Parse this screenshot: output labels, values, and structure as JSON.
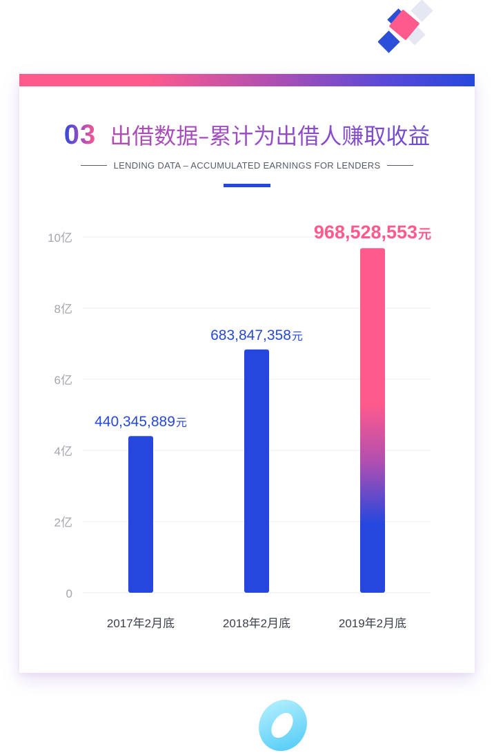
{
  "header": {
    "number": "03",
    "title": "出借数据–累计为出借人赚取收益",
    "subtitle": "LENDING DATA – ACCUMULATED EARNINGS FOR LENDERS"
  },
  "colors": {
    "bar": "#2647dd",
    "highlight": "#ff5a8c",
    "axis_text": "#a3a6ad",
    "category_text": "#3a3f4a",
    "grid": "#eeeeee"
  },
  "chart_data": {
    "type": "bar",
    "categories": [
      "2017年2月底",
      "2018年2月底",
      "2019年2月底"
    ],
    "values": [
      440345889,
      683847358,
      968528553
    ],
    "data_labels": [
      {
        "number": "440,345,889",
        "unit": "元"
      },
      {
        "number": "683,847,358",
        "unit": "元"
      },
      {
        "number": "968,528,553",
        "unit": "元"
      }
    ],
    "highlight_index": 2,
    "y_ticks": [
      {
        "value": 0,
        "label": "0"
      },
      {
        "value": 200000000,
        "label": "2亿"
      },
      {
        "value": 400000000,
        "label": "4亿"
      },
      {
        "value": 600000000,
        "label": "6亿"
      },
      {
        "value": 800000000,
        "label": "8亿"
      },
      {
        "value": 1000000000,
        "label": "10亿"
      }
    ],
    "ylim": [
      0,
      1000000000
    ],
    "grid": true,
    "title": "",
    "xlabel": "",
    "ylabel": ""
  }
}
